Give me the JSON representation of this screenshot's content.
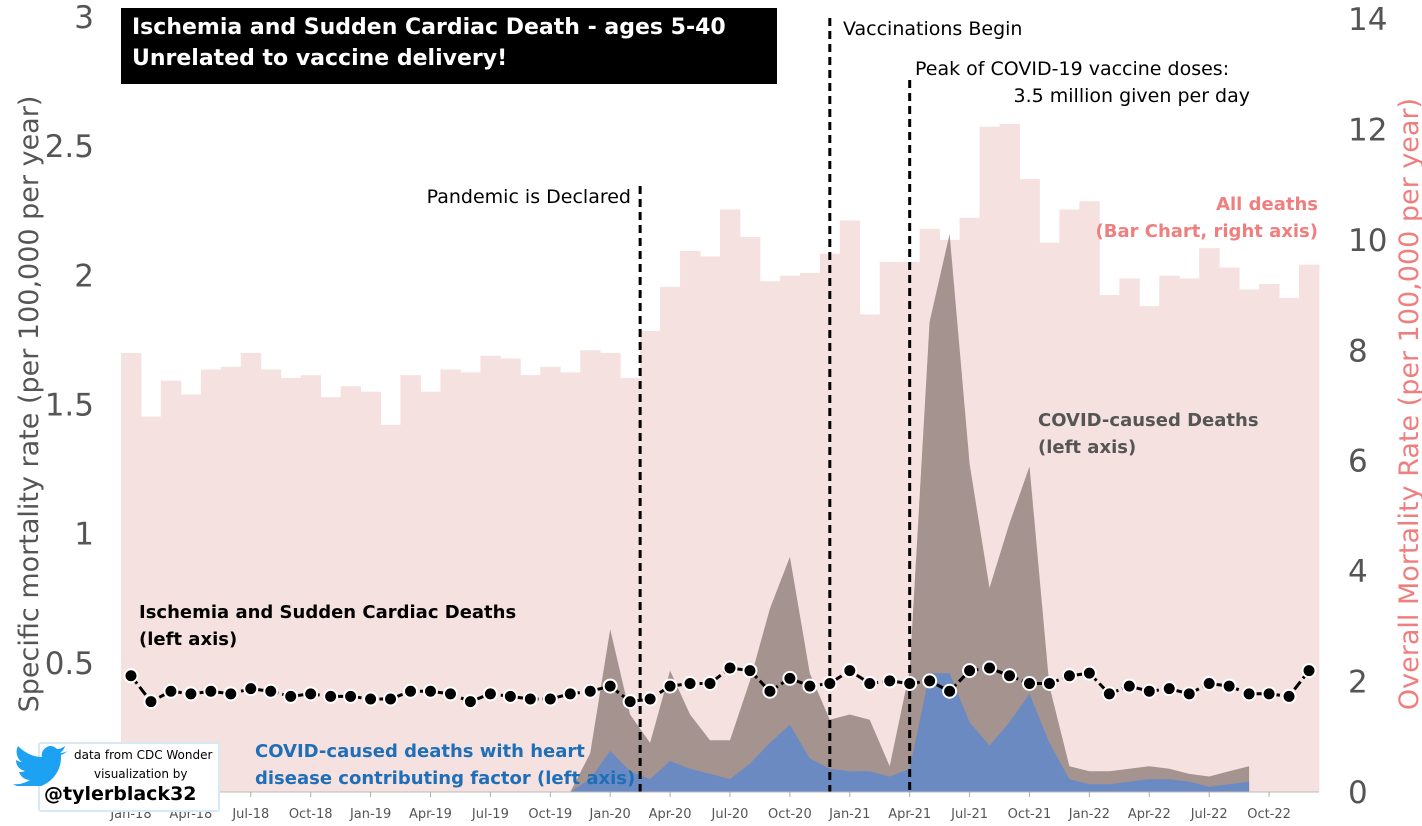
{
  "chart_data": {
    "type": "bar",
    "title": "Ischemia and Sudden Cardiac Death - ages 5-40",
    "subtitle": "Unrelated to vaccine delivery!",
    "ylabel_left": "Specific mortality rate (per 100,000 per year)",
    "ylabel_right": "Overall Mortality Rate (per 100,000 per year)",
    "yleft_lim": [
      0,
      3
    ],
    "yright_lim": [
      0,
      14
    ],
    "yleft_ticks": [
      "0.5",
      "1",
      "1.5",
      "2",
      "2.5",
      "3"
    ],
    "yright_ticks": [
      "0",
      "2",
      "4",
      "6",
      "8",
      "10",
      "12",
      "14"
    ],
    "x_tick_labels": [
      "Jan-18",
      "Apr-18",
      "Jul-18",
      "Oct-18",
      "Jan-19",
      "Apr-19",
      "Jul-19",
      "Oct-19",
      "Jan-20",
      "Apr-20",
      "Jul-20",
      "Oct-20",
      "Jan-21",
      "Apr-21",
      "Jul-21",
      "Oct-21",
      "Jan-22",
      "Apr-22",
      "Jul-22",
      "Oct-22"
    ],
    "grid": false,
    "series": [
      {
        "name": "All deaths",
        "kind": "bar",
        "axis": "right",
        "color": "#f5e1df",
        "values": [
          7.95,
          6.8,
          7.45,
          7.2,
          7.65,
          7.7,
          7.95,
          7.65,
          7.5,
          7.55,
          7.15,
          7.35,
          7.25,
          6.65,
          7.55,
          7.25,
          7.65,
          7.6,
          7.9,
          7.85,
          7.55,
          7.7,
          7.6,
          8.0,
          7.95,
          7.5,
          8.35,
          9.15,
          9.8,
          9.7,
          10.55,
          10.05,
          9.25,
          9.35,
          9.4,
          9.75,
          10.35,
          8.65,
          9.6,
          9.6,
          10.2,
          10.0,
          10.4,
          12.05,
          12.1,
          11.1,
          9.95,
          10.55,
          10.7,
          9.0,
          9.3,
          8.8,
          9.35,
          9.3,
          9.85,
          9.5,
          9.1,
          9.2,
          8.95,
          9.55
        ]
      },
      {
        "name": "COVID-caused Deaths",
        "label": "COVID-caused Deaths (left axis)",
        "kind": "area",
        "axis": "left",
        "color": "#a5938f",
        "values": [
          0,
          0,
          0,
          0,
          0,
          0,
          0,
          0,
          0,
          0,
          0,
          0,
          0,
          0,
          0,
          0,
          0,
          0,
          0,
          0,
          0,
          0,
          0,
          0.15,
          0.63,
          0.3,
          0.19,
          0.47,
          0.3,
          0.2,
          0.2,
          0.43,
          0.71,
          0.91,
          0.46,
          0.28,
          0.3,
          0.28,
          0.1,
          0.47,
          1.82,
          2.16,
          1.27,
          0.79,
          1.04,
          1.26,
          0.41,
          0.1,
          0.08,
          0.08,
          0.09,
          0.1,
          0.09,
          0.07,
          0.06,
          0.08,
          0.1
        ]
      },
      {
        "name": "COVID-caused deaths with heart disease contributing factor",
        "label": "COVID-caused deaths with heart disease contributing factor (left axis)",
        "kind": "area",
        "axis": "left",
        "color": "#6b8ac2",
        "values": [
          0,
          0,
          0,
          0,
          0,
          0,
          0,
          0,
          0,
          0,
          0,
          0,
          0,
          0,
          0,
          0,
          0,
          0,
          0,
          0,
          0,
          0,
          0,
          0.05,
          0.16,
          0.08,
          0.05,
          0.12,
          0.09,
          0.07,
          0.05,
          0.11,
          0.19,
          0.26,
          0.13,
          0.09,
          0.08,
          0.08,
          0.06,
          0.09,
          0.46,
          0.46,
          0.27,
          0.18,
          0.27,
          0.38,
          0.19,
          0.05,
          0.03,
          0.03,
          0.04,
          0.05,
          0.05,
          0.04,
          0.02,
          0.03,
          0.04
        ]
      },
      {
        "name": "Ischemia and Sudden Cardiac Deaths",
        "label": "Ischemia and Sudden Cardiac Deaths (left axis)",
        "kind": "line-markers",
        "axis": "left",
        "color": "#000000",
        "values": [
          0.45,
          0.35,
          0.39,
          0.38,
          0.39,
          0.38,
          0.4,
          0.39,
          0.37,
          0.38,
          0.37,
          0.37,
          0.36,
          0.36,
          0.39,
          0.39,
          0.38,
          0.35,
          0.38,
          0.37,
          0.36,
          0.36,
          0.38,
          0.39,
          0.41,
          0.35,
          0.36,
          0.41,
          0.42,
          0.42,
          0.48,
          0.47,
          0.39,
          0.44,
          0.41,
          0.42,
          0.47,
          0.42,
          0.43,
          0.42,
          0.43,
          0.39,
          0.47,
          0.48,
          0.45,
          0.42,
          0.42,
          0.45,
          0.46,
          0.38,
          0.41,
          0.39,
          0.4,
          0.38,
          0.42,
          0.41,
          0.38,
          0.38,
          0.37,
          0.47
        ]
      }
    ],
    "annotations": [
      {
        "name": "pandemic",
        "text": "Pandemic is Declared",
        "x_month": 26
      },
      {
        "name": "vaccinations",
        "text": "Vaccinations Begin",
        "x_month": 35.5
      },
      {
        "name": "peak",
        "text_line1": "Peak of COVID-19 vaccine doses:",
        "text_line2": "3.5 million given per day",
        "x_month": 39.5
      }
    ],
    "legend_notes": {
      "all_deaths_line1": "All deaths",
      "all_deaths_line2": "(Bar Chart, right axis)",
      "covid_line1": "COVID-caused Deaths",
      "covid_line2": "(left axis)",
      "ischemia_line1": "Ischemia and Sudden Cardiac Deaths",
      "ischemia_line2": "(left axis)",
      "heart_line1": "COVID-caused deaths with heart",
      "heart_line2": "disease contributing factor (left axis)"
    }
  },
  "credits": {
    "line1": "data from CDC Wonder",
    "line2": "visualization by",
    "handle": "@tylerblack32",
    "twitter_icon": "twitter-bird-icon",
    "twitter_color": "#1da1f2"
  }
}
